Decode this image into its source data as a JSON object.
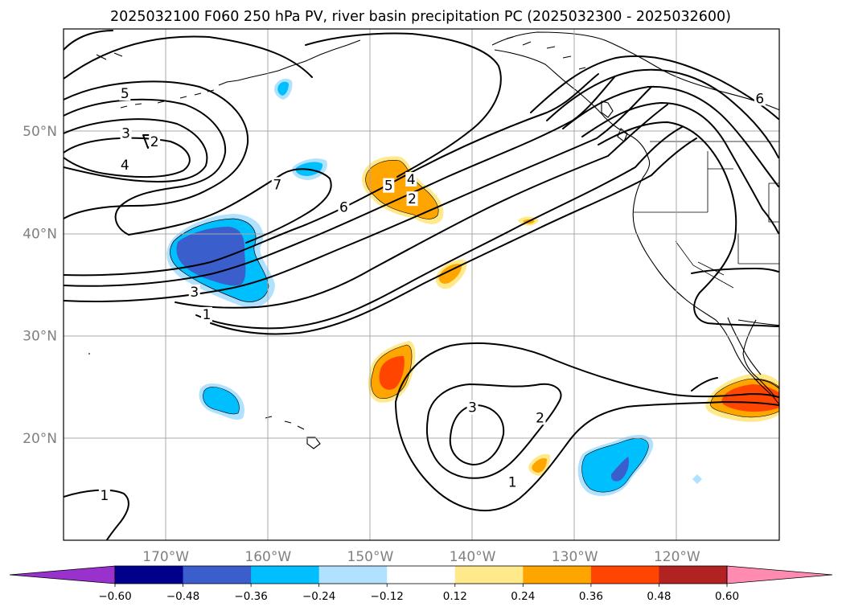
{
  "chart_data": {
    "type": "contour-map",
    "title": "2025032100 F060 250 hPa PV, river basin precipitation PC (2025032300 - 2025032600)",
    "projection": "PlateCarree",
    "extent": {
      "lon": [
        -180,
        -110
      ],
      "lat": [
        10,
        60
      ]
    },
    "grid": true,
    "lat_ticks": [
      {
        "value": 50,
        "label": "50°N"
      },
      {
        "value": 40,
        "label": "40°N"
      },
      {
        "value": 30,
        "label": "30°N"
      },
      {
        "value": 20,
        "label": "20°N"
      }
    ],
    "lon_ticks": [
      {
        "value": -170,
        "label": "170°W"
      },
      {
        "value": -160,
        "label": "160°W"
      },
      {
        "value": -150,
        "label": "150°W"
      },
      {
        "value": -140,
        "label": "140°W"
      },
      {
        "value": -130,
        "label": "130°W"
      },
      {
        "value": -120,
        "label": "120°W"
      }
    ],
    "colorbar": {
      "orientation": "horizontal",
      "extend": "both",
      "levels": [
        -0.6,
        -0.48,
        -0.36,
        -0.24,
        -0.12,
        0.12,
        0.24,
        0.36,
        0.48,
        0.6
      ],
      "tick_labels": [
        "−0.60",
        "−0.48",
        "−0.36",
        "−0.24",
        "−0.12",
        "0.12",
        "0.24",
        "0.36",
        "0.48",
        "0.60"
      ],
      "colors": [
        "#9932cc",
        "#00008b",
        "#3a5fcd",
        "#00bfff",
        "#b0e2ff",
        "#ffffff",
        "#ffe98a",
        "#ffa500",
        "#ff4500",
        "#b22222",
        "#ff8bb0"
      ]
    },
    "pv_contour_labels": [
      {
        "text": "5",
        "lon": -174.0,
        "lat": 53.7
      },
      {
        "text": "3",
        "lon": -173.9,
        "lat": 49.8
      },
      {
        "text": "2",
        "lon": -171.1,
        "lat": 49.0
      },
      {
        "text": "4",
        "lon": -174.0,
        "lat": 46.7
      },
      {
        "text": "7",
        "lon": -159.1,
        "lat": 44.8
      },
      {
        "text": "6",
        "lon": -152.6,
        "lat": 42.6
      },
      {
        "text": "5",
        "lon": -148.2,
        "lat": 44.7
      },
      {
        "text": "4",
        "lon": -146.0,
        "lat": 45.3
      },
      {
        "text": "2",
        "lon": -145.9,
        "lat": 43.4
      },
      {
        "text": "3",
        "lon": -167.2,
        "lat": 34.3
      },
      {
        "text": "1",
        "lon": -166.0,
        "lat": 32.1
      },
      {
        "text": "6",
        "lon": -111.9,
        "lat": 53.2
      },
      {
        "text": "3",
        "lon": -140.0,
        "lat": 23.0
      },
      {
        "text": "2",
        "lon": -133.4,
        "lat": 22.0
      },
      {
        "text": "1",
        "lon": -136.1,
        "lat": 15.7
      },
      {
        "text": "1",
        "lon": -176.0,
        "lat": 14.4
      }
    ],
    "precip_pc_regions": [
      {
        "sign": "negative",
        "max_abs": 0.48,
        "center_lon": -164.5,
        "center_lat": 38.3
      },
      {
        "sign": "negative",
        "max_abs": 0.36,
        "center_lon": -158.6,
        "center_lat": 46.4
      },
      {
        "sign": "negative",
        "max_abs": 0.36,
        "center_lon": -160.5,
        "center_lat": 54.4
      },
      {
        "sign": "negative",
        "max_abs": 0.36,
        "center_lon": -164.6,
        "center_lat": 23.5
      },
      {
        "sign": "negative",
        "max_abs": 0.48,
        "center_lon": -126.6,
        "center_lat": 17.3
      },
      {
        "sign": "positive",
        "max_abs": 0.36,
        "center_lon": -147.1,
        "center_lat": 43.8
      },
      {
        "sign": "positive",
        "max_abs": 0.36,
        "center_lon": -142.0,
        "center_lat": 36.1
      },
      {
        "sign": "positive",
        "max_abs": 0.48,
        "center_lon": -148.2,
        "center_lat": 26.3
      },
      {
        "sign": "positive",
        "max_abs": 0.36,
        "center_lon": -133.5,
        "center_lat": 17.2
      },
      {
        "sign": "positive",
        "max_abs": 0.24,
        "center_lon": -134.6,
        "center_lat": 41.0
      },
      {
        "sign": "positive",
        "max_abs": 0.48,
        "center_lon": -113.5,
        "center_lat": 23.8
      }
    ]
  }
}
